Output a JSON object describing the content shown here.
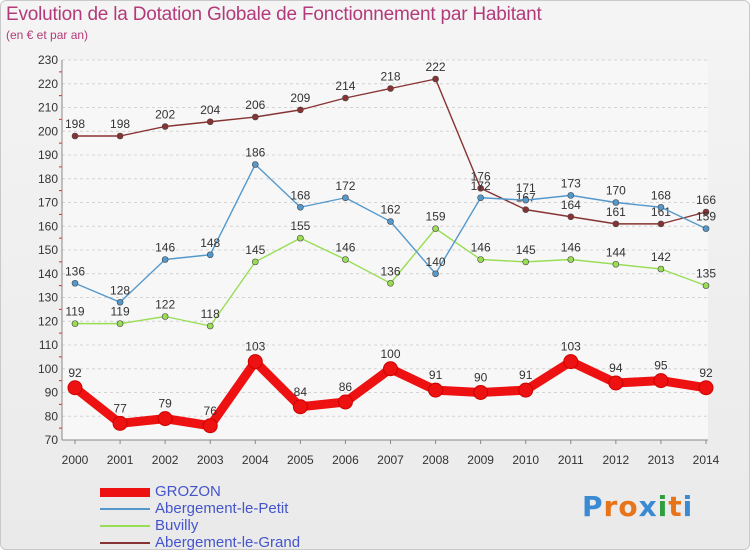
{
  "title": "Evolution de la Dotation Globale de Fonctionnement par Habitant",
  "subtitle": "(en € et par an)",
  "logo_text": "Proxiti",
  "chart_data": {
    "type": "line",
    "title": "Evolution de la Dotation Globale de Fonctionnement par Habitant",
    "subtitle": "(en € et par an)",
    "xlabel": "",
    "ylabel": "",
    "x": [
      "2000",
      "2001",
      "2002",
      "2003",
      "2004",
      "2005",
      "2006",
      "2007",
      "2008",
      "2009",
      "2010",
      "2011",
      "2012",
      "2013",
      "2014"
    ],
    "ylim": [
      70,
      230
    ],
    "yticks": [
      70,
      80,
      90,
      100,
      110,
      120,
      130,
      140,
      150,
      160,
      170,
      180,
      190,
      200,
      210,
      220,
      230
    ],
    "grid": "horizontal dashed",
    "legend_placement": "bottom-left",
    "series": [
      {
        "name": "GROZON",
        "color": "#ee1111",
        "values": [
          92,
          77,
          79,
          76,
          103,
          84,
          86,
          100,
          91,
          90,
          91,
          103,
          94,
          95,
          92
        ]
      },
      {
        "name": "Abergement-le-Petit",
        "color": "#5599cc",
        "values": [
          136,
          128,
          146,
          148,
          186,
          168,
          172,
          162,
          140,
          172,
          171,
          173,
          170,
          168,
          159
        ]
      },
      {
        "name": "Buvilly",
        "color": "#99dd55",
        "values": [
          119,
          119,
          122,
          118,
          145,
          155,
          146,
          136,
          159,
          146,
          145,
          146,
          144,
          142,
          135
        ]
      },
      {
        "name": "Abergement-le-Grand",
        "color": "#883333",
        "values": [
          198,
          198,
          202,
          204,
          206,
          209,
          214,
          218,
          222,
          176,
          167,
          164,
          161,
          161,
          166
        ]
      }
    ]
  }
}
